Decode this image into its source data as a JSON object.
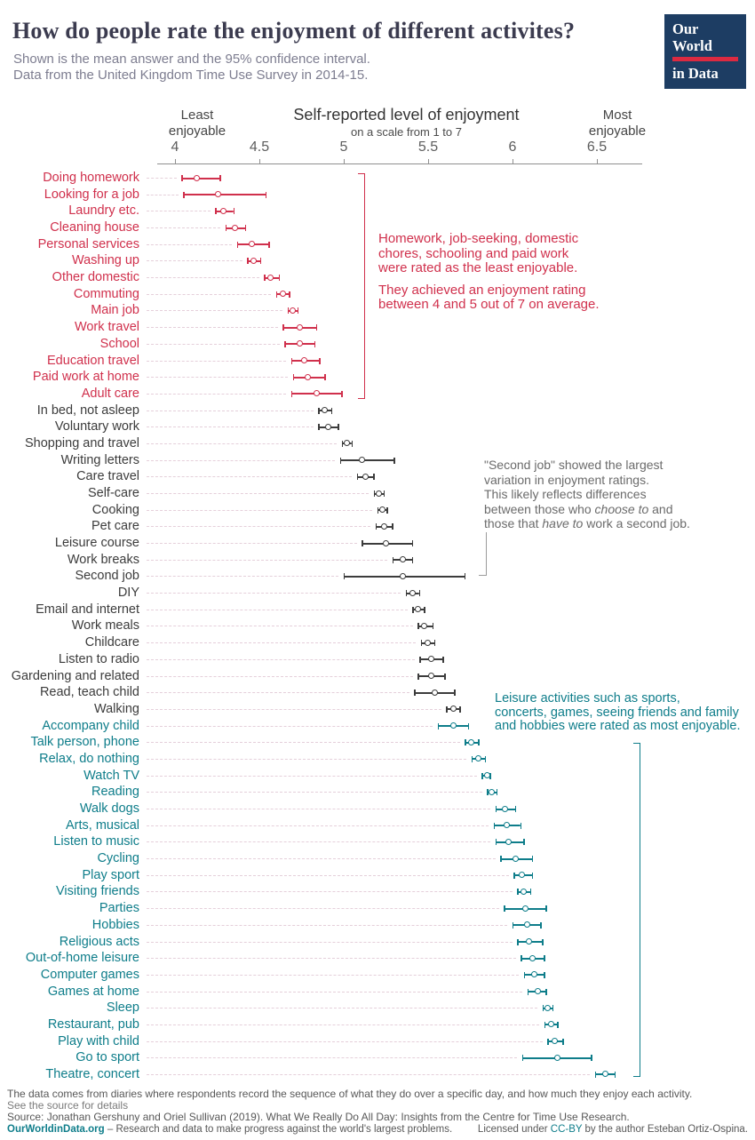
{
  "header": {
    "title": "How do people rate the enjoyment of different activites?",
    "subtitle_line1": "Shown is the mean answer and the 95% confidence interval.",
    "subtitle_line2": "Data from the United Kingdom Time Use Survey in 2014-15.",
    "logo_line1": "Our World",
    "logo_line2": "in Data"
  },
  "colors": {
    "red": "#d0304c",
    "dark": "#3c3c3c",
    "teal": "#0e7d8a",
    "annotation_gray": "#6b6b6b",
    "bracket_gray": "#9b9b9b",
    "navy": "#1d3d63",
    "logo_red": "#dc2a41",
    "leader_pink": "#e5cfda"
  },
  "chart_data": {
    "type": "scatter",
    "title": "Self-reported level of enjoyment",
    "subtitle": "on a scale from 1 to 7",
    "left_axis_label": "Least enjoyable",
    "right_axis_label": "Most enjoyable",
    "xlim": [
      3.95,
      6.8
    ],
    "ticks": [
      4,
      4.5,
      5,
      5.5,
      6,
      6.5
    ],
    "group_colors": {
      "low": "#d0304c",
      "mid": "#3c3c3c",
      "high": "#0e7d8a"
    },
    "points": [
      {
        "label": "Doing homework",
        "mean": 4.13,
        "lo": 4.04,
        "hi": 4.27,
        "group": "low"
      },
      {
        "label": "Looking for a job",
        "mean": 4.26,
        "lo": 4.05,
        "hi": 4.54,
        "group": "low"
      },
      {
        "label": "Laundry etc.",
        "mean": 4.29,
        "lo": 4.24,
        "hi": 4.35,
        "group": "low"
      },
      {
        "label": "Cleaning house",
        "mean": 4.36,
        "lo": 4.3,
        "hi": 4.42,
        "group": "low"
      },
      {
        "label": "Personal services",
        "mean": 4.46,
        "lo": 4.37,
        "hi": 4.56,
        "group": "low"
      },
      {
        "label": "Washing up",
        "mean": 4.47,
        "lo": 4.43,
        "hi": 4.51,
        "group": "low"
      },
      {
        "label": "Other domestic",
        "mean": 4.57,
        "lo": 4.53,
        "hi": 4.62,
        "group": "low"
      },
      {
        "label": "Commuting",
        "mean": 4.64,
        "lo": 4.6,
        "hi": 4.68,
        "group": "low"
      },
      {
        "label": "Main job",
        "mean": 4.7,
        "lo": 4.67,
        "hi": 4.73,
        "group": "low"
      },
      {
        "label": "Work travel",
        "mean": 4.74,
        "lo": 4.64,
        "hi": 4.84,
        "group": "low"
      },
      {
        "label": "School",
        "mean": 4.74,
        "lo": 4.65,
        "hi": 4.83,
        "group": "low"
      },
      {
        "label": "Education travel",
        "mean": 4.77,
        "lo": 4.69,
        "hi": 4.86,
        "group": "low"
      },
      {
        "label": "Paid work at home",
        "mean": 4.79,
        "lo": 4.7,
        "hi": 4.89,
        "group": "low"
      },
      {
        "label": "Adult care",
        "mean": 4.84,
        "lo": 4.69,
        "hi": 4.99,
        "group": "low"
      },
      {
        "label": "In bed, not asleep",
        "mean": 4.89,
        "lo": 4.85,
        "hi": 4.93,
        "group": "mid"
      },
      {
        "label": "Voluntary work",
        "mean": 4.91,
        "lo": 4.85,
        "hi": 4.97,
        "group": "mid"
      },
      {
        "label": "Shopping and travel",
        "mean": 5.02,
        "lo": 4.99,
        "hi": 5.05,
        "group": "mid"
      },
      {
        "label": "Writing letters",
        "mean": 5.11,
        "lo": 4.98,
        "hi": 5.3,
        "group": "mid"
      },
      {
        "label": "Care travel",
        "mean": 5.13,
        "lo": 5.08,
        "hi": 5.18,
        "group": "mid"
      },
      {
        "label": "Self-care",
        "mean": 5.21,
        "lo": 5.18,
        "hi": 5.24,
        "group": "mid"
      },
      {
        "label": "Cooking",
        "mean": 5.23,
        "lo": 5.2,
        "hi": 5.26,
        "group": "mid"
      },
      {
        "label": "Pet care",
        "mean": 5.24,
        "lo": 5.19,
        "hi": 5.29,
        "group": "mid"
      },
      {
        "label": "Leisure course",
        "mean": 5.25,
        "lo": 5.11,
        "hi": 5.41,
        "group": "mid"
      },
      {
        "label": "Work breaks",
        "mean": 5.35,
        "lo": 5.29,
        "hi": 5.41,
        "group": "mid"
      },
      {
        "label": "Second job",
        "mean": 5.35,
        "lo": 5.0,
        "hi": 5.72,
        "group": "mid"
      },
      {
        "label": "DIY",
        "mean": 5.41,
        "lo": 5.37,
        "hi": 5.45,
        "group": "mid"
      },
      {
        "label": "Email and internet",
        "mean": 5.44,
        "lo": 5.41,
        "hi": 5.48,
        "group": "mid"
      },
      {
        "label": "Work meals",
        "mean": 5.48,
        "lo": 5.44,
        "hi": 5.53,
        "group": "mid"
      },
      {
        "label": "Childcare",
        "mean": 5.5,
        "lo": 5.46,
        "hi": 5.54,
        "group": "mid"
      },
      {
        "label": "Listen to radio",
        "mean": 5.52,
        "lo": 5.45,
        "hi": 5.59,
        "group": "mid"
      },
      {
        "label": "Gardening and related",
        "mean": 5.52,
        "lo": 5.44,
        "hi": 5.6,
        "group": "mid"
      },
      {
        "label": "Read, teach child",
        "mean": 5.54,
        "lo": 5.42,
        "hi": 5.66,
        "group": "mid"
      },
      {
        "label": "Walking",
        "mean": 5.65,
        "lo": 5.61,
        "hi": 5.69,
        "group": "mid"
      },
      {
        "label": "Accompany child",
        "mean": 5.65,
        "lo": 5.56,
        "hi": 5.74,
        "group": "high"
      },
      {
        "label": "Talk person, phone",
        "mean": 5.76,
        "lo": 5.72,
        "hi": 5.8,
        "group": "high"
      },
      {
        "label": "Relax, do nothing",
        "mean": 5.8,
        "lo": 5.76,
        "hi": 5.84,
        "group": "high"
      },
      {
        "label": "Watch TV",
        "mean": 5.85,
        "lo": 5.82,
        "hi": 5.87,
        "group": "high"
      },
      {
        "label": "Reading",
        "mean": 5.88,
        "lo": 5.85,
        "hi": 5.91,
        "group": "high"
      },
      {
        "label": "Walk dogs",
        "mean": 5.96,
        "lo": 5.9,
        "hi": 6.02,
        "group": "high"
      },
      {
        "label": "Arts, musical",
        "mean": 5.97,
        "lo": 5.89,
        "hi": 6.05,
        "group": "high"
      },
      {
        "label": "Listen to music",
        "mean": 5.98,
        "lo": 5.9,
        "hi": 6.07,
        "group": "high"
      },
      {
        "label": "Cycling",
        "mean": 6.02,
        "lo": 5.93,
        "hi": 6.12,
        "group": "high"
      },
      {
        "label": "Play sport",
        "mean": 6.06,
        "lo": 6.01,
        "hi": 6.12,
        "group": "high"
      },
      {
        "label": "Visiting friends",
        "mean": 6.07,
        "lo": 6.03,
        "hi": 6.11,
        "group": "high"
      },
      {
        "label": "Parties",
        "mean": 6.08,
        "lo": 5.95,
        "hi": 6.2,
        "group": "high"
      },
      {
        "label": "Hobbies",
        "mean": 6.09,
        "lo": 6.0,
        "hi": 6.17,
        "group": "high"
      },
      {
        "label": "Religious acts",
        "mean": 6.1,
        "lo": 6.03,
        "hi": 6.18,
        "group": "high"
      },
      {
        "label": "Out-of-home leisure",
        "mean": 6.12,
        "lo": 6.05,
        "hi": 6.19,
        "group": "high"
      },
      {
        "label": "Computer games",
        "mean": 6.13,
        "lo": 6.07,
        "hi": 6.19,
        "group": "high"
      },
      {
        "label": "Games at home",
        "mean": 6.15,
        "lo": 6.09,
        "hi": 6.2,
        "group": "high"
      },
      {
        "label": "Sleep",
        "mean": 6.21,
        "lo": 6.18,
        "hi": 6.24,
        "group": "high"
      },
      {
        "label": "Restaurant, pub",
        "mean": 6.23,
        "lo": 6.19,
        "hi": 6.27,
        "group": "high"
      },
      {
        "label": "Play with child",
        "mean": 6.25,
        "lo": 6.21,
        "hi": 6.3,
        "group": "high"
      },
      {
        "label": "Go to sport",
        "mean": 6.27,
        "lo": 6.06,
        "hi": 6.47,
        "group": "high"
      },
      {
        "label": "Theatre, concert",
        "mean": 6.55,
        "lo": 6.49,
        "hi": 6.61,
        "group": "high"
      }
    ]
  },
  "annotations": {
    "least": {
      "lines1": [
        "Homework, job-seeking, domestic",
        "chores, schooling and paid work",
        "were rated as the least enjoyable."
      ],
      "lines2": [
        "They achieved an enjoyment rating",
        "between 4 and 5 out of 7 on average."
      ]
    },
    "second_job": {
      "l1": "\"Second job\" showed the largest",
      "l2": " variation in enjoyment ratings.",
      "l3": "This likely reflects differences",
      "l4a": "between those who ",
      "l4b": "choose to",
      "l4c": " and",
      "l5a": "those that ",
      "l5b": "have to",
      "l5c": " work a second job."
    },
    "leisure_lines": [
      "Leisure activities such as sports,",
      "concerts, games, seeing friends and family",
      "and hobbies were rated as most enjoyable."
    ]
  },
  "footer": {
    "note1": "The data comes from diaries where respondents record the sequence of what they do over a specific day, and how much they enjoy each activity.",
    "note2": "See the source for details",
    "source": "Source: Jonathan Gershuny and Oriel Sullivan (2019). What We Really Do All Day: Insights from the Centre for Time Use Research.",
    "site": "OurWorldinData.org",
    "site_tagline": " – Research and data to make progress against the world's largest problems.",
    "license_pre": "Licensed under ",
    "license_link": "CC-BY",
    "license_post": " by the author Esteban Ortiz-Ospina."
  }
}
